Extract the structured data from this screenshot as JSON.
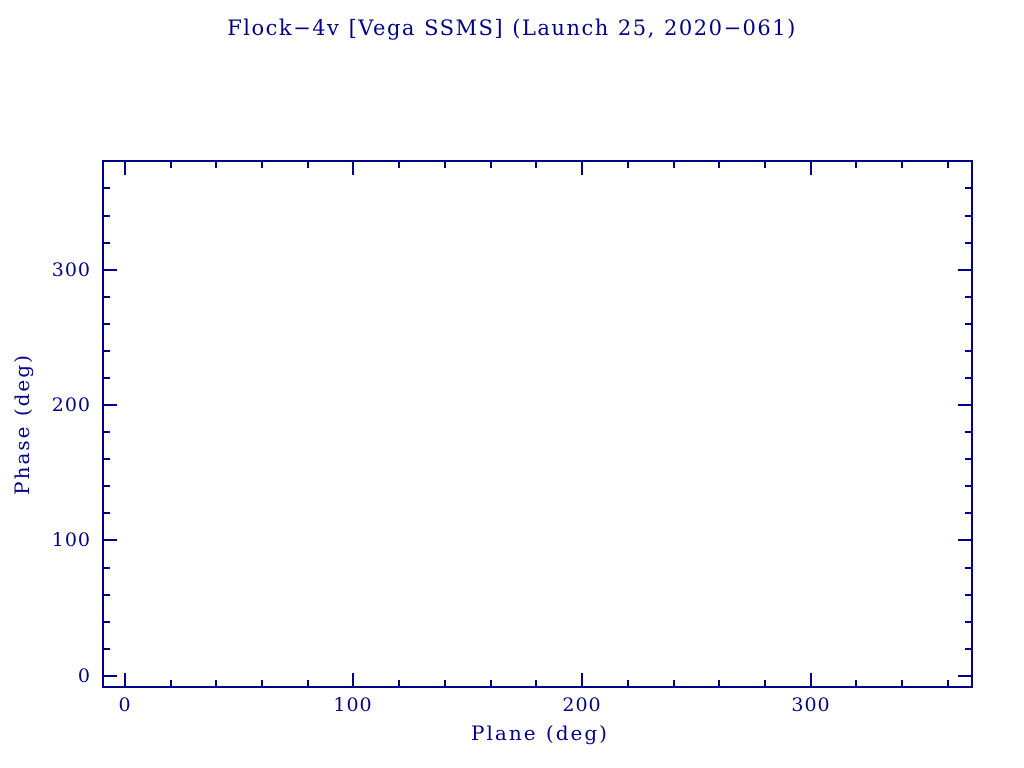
{
  "page": {
    "background": "#ffffff"
  },
  "chart_data": {
    "type": "scatter",
    "title": "Flock−4v [Vega SSMS] (Launch 25, 2020−061)",
    "xlabel": "Plane (deg)",
    "ylabel": "Phase (deg)",
    "xlim": [
      -10,
      371
    ],
    "ylim": [
      -9,
      381
    ],
    "x_major_ticks": [
      0,
      100,
      200,
      300
    ],
    "x_major_tick_labels": [
      "0",
      "100",
      "200",
      "300"
    ],
    "y_major_ticks": [
      0,
      100,
      200,
      300
    ],
    "y_major_tick_labels": [
      "0",
      "100",
      "200",
      "300"
    ],
    "minor_tick_step": 20,
    "grid": false,
    "ticks_direction": "in",
    "frame_color": "#00008B",
    "text_color": "#00008B",
    "series": [],
    "points": []
  }
}
